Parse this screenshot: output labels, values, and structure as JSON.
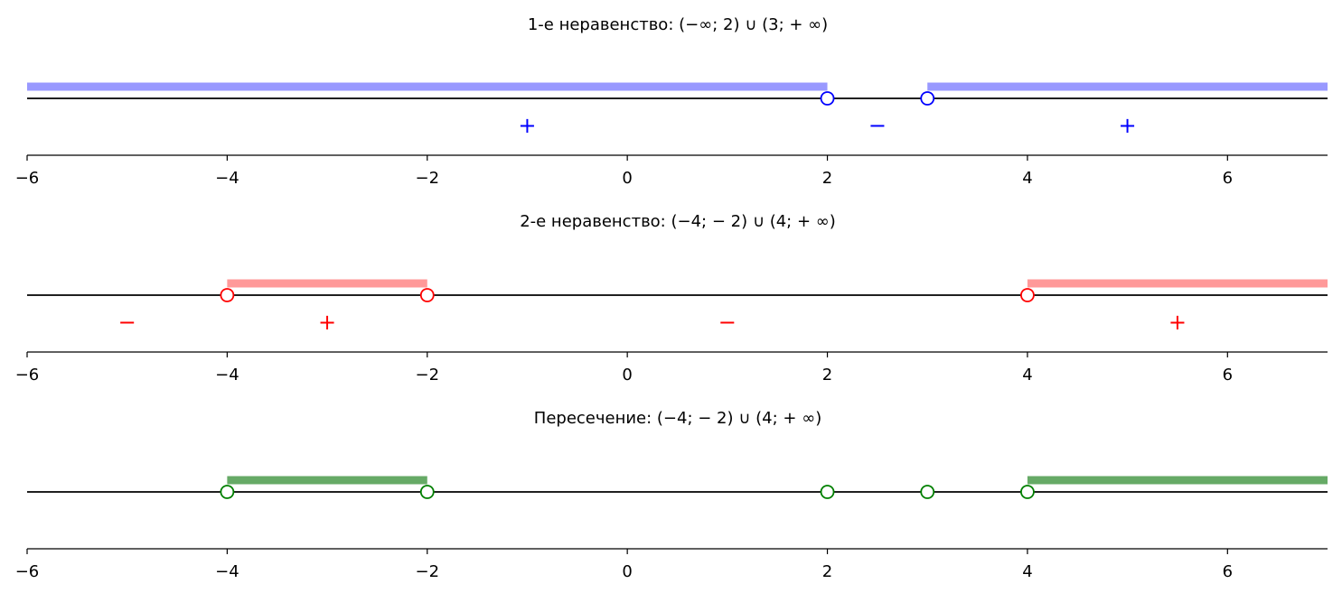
{
  "chart_data": [
    {
      "type": "number-line",
      "title": "1-е неравенство: (−∞; 2) ∪ (3; + ∞)",
      "xlim": [
        -6,
        7
      ],
      "ticks": [
        -6,
        -4,
        -2,
        0,
        2,
        4,
        6
      ],
      "tick_labels": [
        "−6",
        "−4",
        "−2",
        "0",
        "2",
        "4",
        "6"
      ],
      "color": "#0000ff",
      "band_color": "#9999ff",
      "intervals": [
        [
          -6,
          2
        ],
        [
          3,
          7
        ]
      ],
      "points": [
        2,
        3
      ],
      "signs": [
        {
          "x": -1,
          "label": "+"
        },
        {
          "x": 2.5,
          "label": "−"
        },
        {
          "x": 5,
          "label": "+"
        }
      ]
    },
    {
      "type": "number-line",
      "title": "2-е неравенство: (−4; − 2) ∪ (4; + ∞)",
      "xlim": [
        -6,
        7
      ],
      "ticks": [
        -6,
        -4,
        -2,
        0,
        2,
        4,
        6
      ],
      "tick_labels": [
        "−6",
        "−4",
        "−2",
        "0",
        "2",
        "4",
        "6"
      ],
      "color": "#ff0000",
      "band_color": "#ff9999",
      "intervals": [
        [
          -4,
          -2
        ],
        [
          4,
          7
        ]
      ],
      "points": [
        -4,
        -2,
        4
      ],
      "signs": [
        {
          "x": -5,
          "label": "−"
        },
        {
          "x": -3,
          "label": "+"
        },
        {
          "x": 1,
          "label": "−"
        },
        {
          "x": 5.5,
          "label": "+"
        }
      ]
    },
    {
      "type": "number-line",
      "title": "Пересечение: (−4; − 2) ∪ (4; + ∞)",
      "xlim": [
        -6,
        7
      ],
      "ticks": [
        -6,
        -4,
        -2,
        0,
        2,
        4,
        6
      ],
      "tick_labels": [
        "−6",
        "−4",
        "−2",
        "0",
        "2",
        "4",
        "6"
      ],
      "color": "#008000",
      "band_color": "#66aa66",
      "intervals": [
        [
          -4,
          -2
        ],
        [
          4,
          7
        ]
      ],
      "points": [
        -4,
        -2,
        2,
        3,
        4
      ],
      "signs": []
    }
  ]
}
